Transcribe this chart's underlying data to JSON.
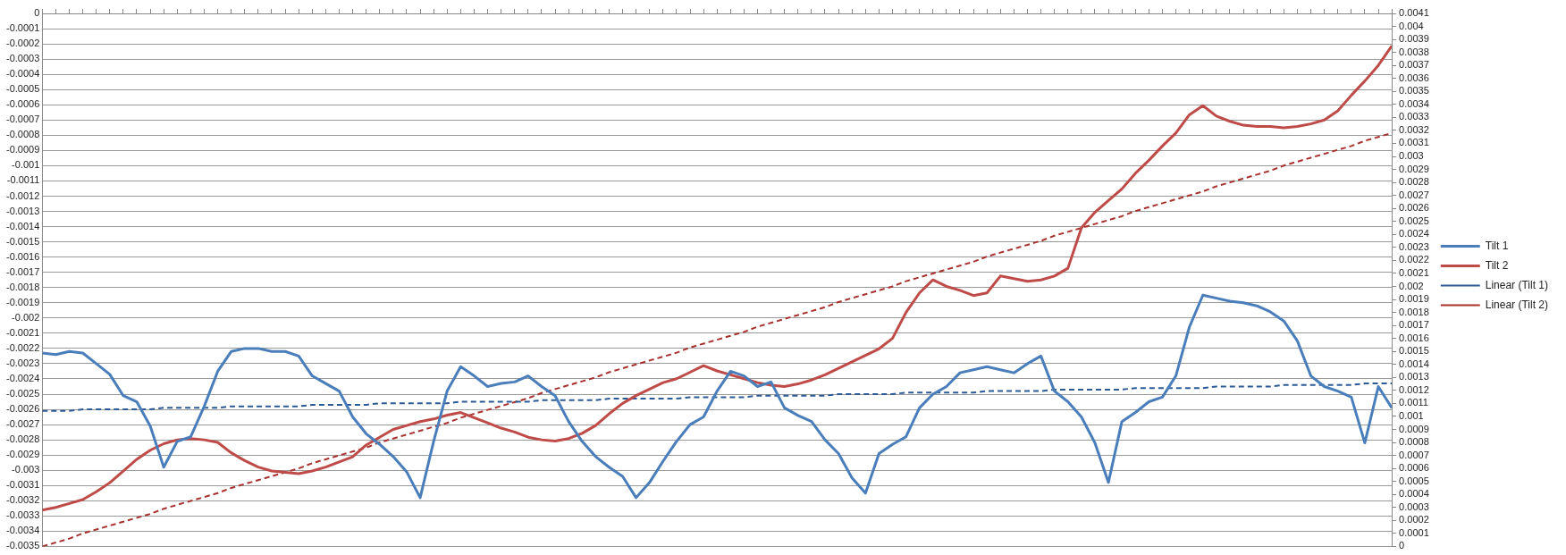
{
  "chart_data": {
    "type": "line",
    "marker": "none",
    "line_style": "solid",
    "grid": "y",
    "legend": "right",
    "categories": [
      null,
      null,
      null,
      null,
      null,
      null,
      null,
      null,
      null,
      null,
      null,
      null,
      null,
      null,
      null,
      null,
      null,
      null,
      null,
      null,
      null,
      null,
      null,
      null,
      null,
      null,
      null,
      null,
      null,
      null,
      null,
      null,
      null,
      null,
      null,
      null,
      null,
      null,
      null,
      null,
      null,
      null,
      null,
      null,
      null,
      null,
      null,
      null,
      null,
      null,
      null,
      null,
      null,
      null,
      null,
      null,
      null,
      null,
      null,
      null,
      null,
      null,
      null,
      null,
      null,
      null,
      null,
      null,
      null,
      null,
      null,
      null,
      null,
      null,
      null,
      null,
      null,
      null,
      null,
      null,
      null,
      null,
      null,
      null,
      null,
      null,
      null,
      null,
      null,
      null,
      null,
      null,
      null,
      null,
      null,
      null,
      null,
      null,
      null,
      null,
      null
    ],
    "ylim": [
      -0.0035,
      0
    ],
    "yticks": [
      -0.0035,
      -0.0034,
      -0.0033,
      -0.0032,
      -0.0031,
      -0.003,
      -0.0029,
      -0.0028,
      -0.0027,
      -0.0026,
      -0.0025,
      -0.0024,
      -0.0023,
      -0.0022,
      -0.0021,
      -0.002,
      -0.0019,
      -0.0018,
      -0.0017,
      -0.0016,
      -0.0015,
      -0.0014,
      -0.0013,
      -0.0012,
      -0.0011,
      -0.001,
      -0.0009,
      -0.0008,
      -0.0007,
      -0.0006,
      -0.0005,
      -0.0004,
      -0.0003,
      -0.0002,
      -0.0001,
      0
    ],
    "y2lim": [
      0,
      0.0041
    ],
    "y2ticks": [
      0,
      0.0001,
      0.0002,
      0.0003,
      0.0004,
      0.0005,
      0.0006,
      0.0007,
      0.0008,
      0.0009,
      0.001,
      0.0011,
      0.0012,
      0.0013,
      0.0014,
      0.0015,
      0.0016,
      0.0017,
      0.0018,
      0.0019,
      0.002,
      0.0021,
      0.0022,
      0.0023,
      0.0024,
      0.0025,
      0.0026,
      0.0027,
      0.0028,
      0.0029,
      0.003,
      0.0031,
      0.0032,
      0.0033,
      0.0034,
      0.0035,
      0.0036,
      0.0037,
      0.0038,
      0.0039,
      0.004,
      0.0041
    ],
    "series": [
      {
        "name": "Tilt 1",
        "color": "#4a7ebb",
        "values": [
          -0.00223,
          -0.00224,
          -0.00222,
          -0.00223,
          -0.0023,
          -0.00237,
          -0.00251,
          -0.00255,
          -0.00271,
          -0.00298,
          -0.00281,
          -0.00278,
          -0.00258,
          -0.00235,
          -0.00222,
          -0.0022,
          -0.0022,
          -0.00222,
          -0.00222,
          -0.00225,
          -0.00238,
          -0.00243,
          -0.00248,
          -0.00265,
          -0.00276,
          -0.00283,
          -0.00291,
          -0.00301,
          -0.00318,
          -0.00281,
          -0.00248,
          -0.00232,
          -0.00238,
          -0.00245,
          -0.00243,
          -0.00242,
          -0.00238,
          -0.00245,
          -0.00251,
          -0.00268,
          -0.00281,
          -0.00291,
          -0.00298,
          -0.00304,
          -0.00318,
          -0.00308,
          -0.00294,
          -0.00281,
          -0.0027,
          -0.00265,
          -0.00248,
          -0.00235,
          -0.00238,
          -0.00245,
          -0.00242,
          -0.00259,
          -0.00264,
          -0.00268,
          -0.0028,
          -0.00289,
          -0.00305,
          -0.00315,
          -0.00289,
          -0.00283,
          -0.00278,
          -0.00259,
          -0.0025,
          -0.00245,
          -0.00236,
          -0.00234,
          -0.00232,
          -0.00234,
          -0.00236,
          -0.0023,
          -0.00225,
          -0.00248,
          -0.00255,
          -0.00265,
          -0.00282,
          -0.00308,
          -0.00268,
          -0.00262,
          -0.00255,
          -0.00252,
          -0.00238,
          -0.00206,
          -0.00185,
          -0.00187,
          -0.00189,
          -0.0019,
          -0.00192,
          -0.00196,
          -0.00202,
          -0.00215,
          -0.00238,
          -0.00245,
          -0.00248,
          -0.00252,
          -0.00282,
          -0.00245,
          -0.00259
        ]
      },
      {
        "name": "Tilt 2",
        "color": "#be4b48",
        "axis": "y2",
        "values": [
          0.00028,
          0.0003,
          0.00033,
          0.00036,
          0.00042,
          0.00049,
          0.00058,
          0.00067,
          0.00074,
          0.00079,
          0.00082,
          0.00083,
          0.00082,
          0.0008,
          0.00072,
          0.00066,
          0.00061,
          0.00058,
          0.00057,
          0.00056,
          0.00058,
          0.00061,
          0.00065,
          0.00069,
          0.00078,
          0.00084,
          0.0009,
          0.00093,
          0.00096,
          0.00098,
          0.00101,
          0.00103,
          0.00099,
          0.00095,
          0.00091,
          0.00088,
          0.00084,
          0.00082,
          0.00081,
          0.00083,
          0.00087,
          0.00093,
          0.00102,
          0.0011,
          0.00116,
          0.00121,
          0.00126,
          0.00129,
          0.00134,
          0.00139,
          0.00135,
          0.00132,
          0.00129,
          0.00126,
          0.00124,
          0.00123,
          0.00125,
          0.00128,
          0.00132,
          0.00137,
          0.00142,
          0.00147,
          0.00152,
          0.0016,
          0.0018,
          0.00195,
          0.00205,
          0.002,
          0.00197,
          0.00193,
          0.00195,
          0.00208,
          0.00206,
          0.00204,
          0.00205,
          0.00208,
          0.00214,
          0.00245,
          0.00257,
          0.00266,
          0.00275,
          0.00287,
          0.00297,
          0.00308,
          0.00318,
          0.00332,
          0.00339,
          0.00331,
          0.00327,
          0.00324,
          0.00323,
          0.00323,
          0.00322,
          0.00323,
          0.00325,
          0.00328,
          0.00335,
          0.00347,
          0.00358,
          0.0037,
          0.00385
        ]
      },
      {
        "name": "Linear (Tilt 1)",
        "type": "line",
        "color": "#2c5a94",
        "line_style": "dashed",
        "values": [
          -0.00261,
          -0.00261,
          -0.00261,
          -0.0026,
          -0.0026,
          -0.0026,
          -0.0026,
          -0.0026,
          -0.0026,
          -0.00259,
          -0.00259,
          -0.00259,
          -0.00259,
          -0.00259,
          -0.00258,
          -0.00258,
          -0.00258,
          -0.00258,
          -0.00258,
          -0.00258,
          -0.00257,
          -0.00257,
          -0.00257,
          -0.00257,
          -0.00257,
          -0.00256,
          -0.00256,
          -0.00256,
          -0.00256,
          -0.00256,
          -0.00256,
          -0.00255,
          -0.00255,
          -0.00255,
          -0.00255,
          -0.00255,
          -0.00255,
          -0.00254,
          -0.00254,
          -0.00254,
          -0.00254,
          -0.00254,
          -0.00253,
          -0.00253,
          -0.00253,
          -0.00253,
          -0.00253,
          -0.00253,
          -0.00252,
          -0.00252,
          -0.00252,
          -0.00252,
          -0.00252,
          -0.00251,
          -0.00251,
          -0.00251,
          -0.00251,
          -0.00251,
          -0.00251,
          -0.0025,
          -0.0025,
          -0.0025,
          -0.0025,
          -0.0025,
          -0.00249,
          -0.00249,
          -0.00249,
          -0.00249,
          -0.00249,
          -0.00249,
          -0.00248,
          -0.00248,
          -0.00248,
          -0.00248,
          -0.00248,
          -0.00247,
          -0.00247,
          -0.00247,
          -0.00247,
          -0.00247,
          -0.00247,
          -0.00246,
          -0.00246,
          -0.00246,
          -0.00246,
          -0.00246,
          -0.00246,
          -0.00245,
          -0.00245,
          -0.00245,
          -0.00245,
          -0.00245,
          -0.00244,
          -0.00244,
          -0.00244,
          -0.00244,
          -0.00244,
          -0.00244,
          -0.00243,
          -0.00243,
          -0.00243
        ]
      },
      {
        "name": "Linear (Tilt 2)",
        "type": "line",
        "color": "#a8322f",
        "line_style": "dashed",
        "axis": "y2",
        "values": [
          0,
          3e-05,
          6e-05,
          0.0001,
          0.00013,
          0.00016,
          0.00019,
          0.00022,
          0.00025,
          0.00029,
          0.00032,
          0.00035,
          0.00038,
          0.00041,
          0.00045,
          0.00048,
          0.00051,
          0.00054,
          0.00057,
          0.0006,
          0.00064,
          0.00067,
          0.0007,
          0.00073,
          0.00076,
          0.0008,
          0.00083,
          0.00086,
          0.00089,
          0.00092,
          0.00095,
          0.00099,
          0.00102,
          0.00105,
          0.00108,
          0.00111,
          0.00114,
          0.00118,
          0.00121,
          0.00124,
          0.00127,
          0.0013,
          0.00134,
          0.00137,
          0.0014,
          0.00143,
          0.00146,
          0.00149,
          0.00153,
          0.00156,
          0.00159,
          0.00162,
          0.00165,
          0.00169,
          0.00172,
          0.00175,
          0.00178,
          0.00181,
          0.00184,
          0.00188,
          0.00191,
          0.00194,
          0.00197,
          0.002,
          0.00204,
          0.00207,
          0.0021,
          0.00213,
          0.00216,
          0.00219,
          0.00223,
          0.00226,
          0.00229,
          0.00232,
          0.00235,
          0.00239,
          0.00242,
          0.00245,
          0.00248,
          0.00251,
          0.00254,
          0.00258,
          0.00261,
          0.00264,
          0.00267,
          0.0027,
          0.00273,
          0.00277,
          0.0028,
          0.00283,
          0.00286,
          0.00289,
          0.00293,
          0.00296,
          0.00299,
          0.00302,
          0.00305,
          0.00308,
          0.00312,
          0.00315,
          0.00318
        ]
      }
    ]
  }
}
